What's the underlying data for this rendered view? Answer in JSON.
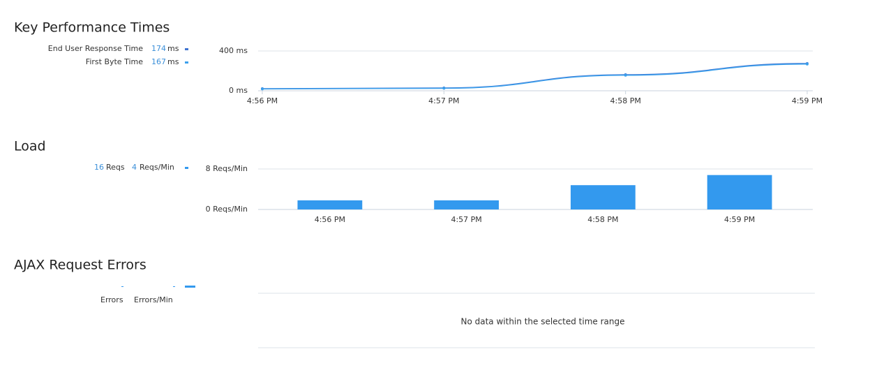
{
  "chart_data": [
    {
      "type": "line",
      "title": "Key Performance Times",
      "x": [
        "4:56 PM",
        "4:57 PM",
        "4:58 PM",
        "4:59 PM"
      ],
      "unit": "ms",
      "series": [
        {
          "name": "End User Response Time",
          "color": "#3f73d0",
          "summary": 174,
          "values": [
            21,
            28,
            161,
            274
          ]
        },
        {
          "name": "First Byte Time",
          "color": "#3ba0ec",
          "summary": 167,
          "values": [
            18,
            25,
            156,
            268
          ]
        }
      ],
      "ylim": [
        0,
        400
      ],
      "yticks": [
        {
          "value": 0,
          "label": "0 ms"
        },
        {
          "value": 400,
          "label": "400 ms"
        }
      ],
      "grid": true
    },
    {
      "type": "bar",
      "title": "Load",
      "categories": [
        "4:56 PM",
        "4:57 PM",
        "4:58 PM",
        "4:59 PM"
      ],
      "values": [
        1.8,
        1.8,
        4.8,
        6.8
      ],
      "color": "#3399ee",
      "summary": [
        {
          "value": 16,
          "unit": "Reqs"
        },
        {
          "value": 4,
          "unit": "Reqs/Min"
        }
      ],
      "ylim": [
        0,
        8
      ],
      "yticks": [
        {
          "value": 0,
          "label": "0 Reqs/Min"
        },
        {
          "value": 8,
          "label": "8 Reqs/Min"
        }
      ],
      "grid": true
    },
    {
      "type": "empty",
      "title": "AJAX Request Errors",
      "summary_labels": [
        "Errors",
        "Errors/Min"
      ],
      "color": "#3399ee",
      "message": "No data within the selected time range"
    }
  ]
}
